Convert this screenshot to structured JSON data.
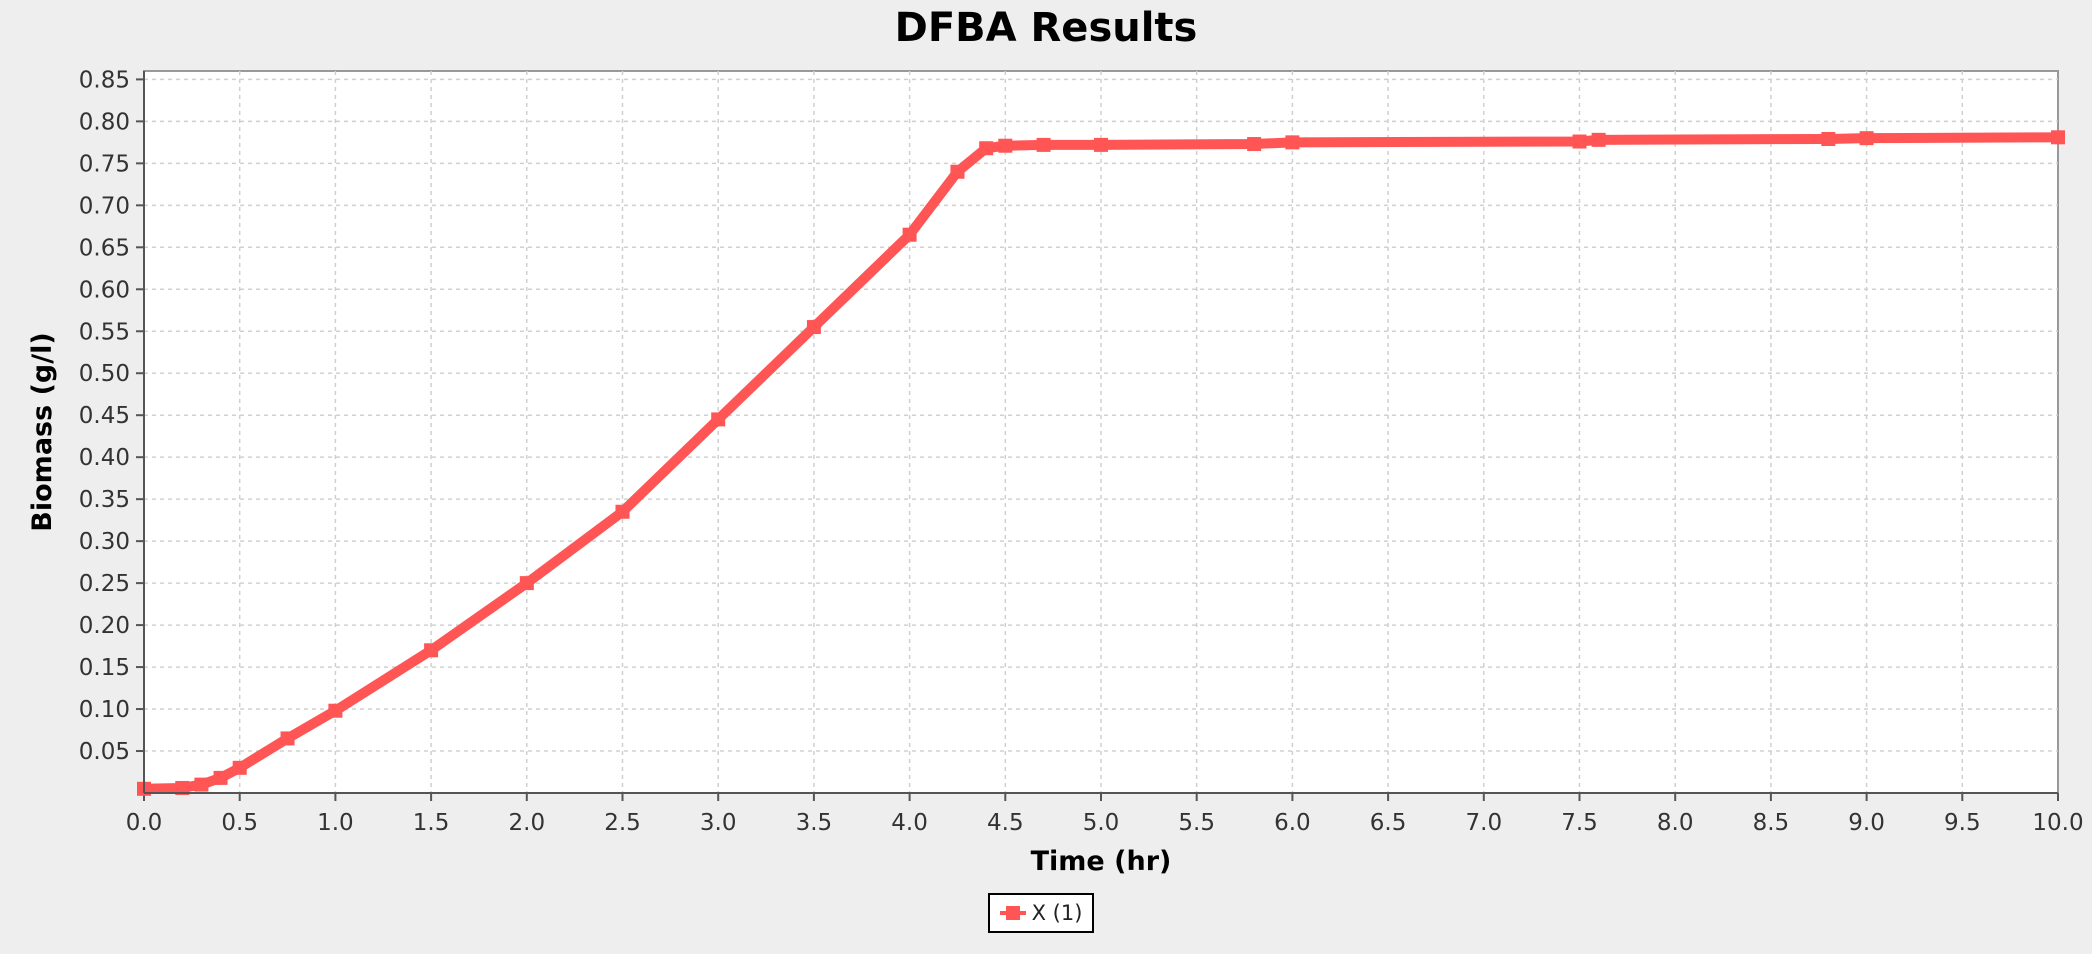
{
  "window": {
    "background": "#eeeeee"
  },
  "chart_data": {
    "type": "line",
    "title": "DFBA Results",
    "xlabel": "Time (hr)",
    "ylabel": "Biomass (g/l)",
    "xlim": [
      0.0,
      10.0
    ],
    "ylim": [
      0.0,
      0.86
    ],
    "x_ticks": [
      "0.0",
      "0.5",
      "1.0",
      "1.5",
      "2.0",
      "2.5",
      "3.0",
      "3.5",
      "4.0",
      "4.5",
      "5.0",
      "5.5",
      "6.0",
      "6.5",
      "7.0",
      "7.5",
      "8.0",
      "8.5",
      "9.0",
      "9.5",
      "10.0"
    ],
    "y_ticks": [
      "0.05",
      "0.10",
      "0.15",
      "0.20",
      "0.25",
      "0.30",
      "0.35",
      "0.40",
      "0.45",
      "0.50",
      "0.55",
      "0.60",
      "0.65",
      "0.70",
      "0.75",
      "0.80",
      "0.85"
    ],
    "grid": true,
    "legend_position": "bottom-center",
    "series": [
      {
        "name": "X (1)",
        "color": "#ff5555",
        "marker": "square",
        "x": [
          0.0,
          0.2,
          0.3,
          0.4,
          0.5,
          0.75,
          1.0,
          1.5,
          2.0,
          2.5,
          3.0,
          3.5,
          4.0,
          4.25,
          4.4,
          4.5,
          4.7,
          5.0,
          5.8,
          6.0,
          7.5,
          7.6,
          8.8,
          9.0,
          10.0
        ],
        "y": [
          0.005,
          0.006,
          0.01,
          0.018,
          0.03,
          0.065,
          0.098,
          0.17,
          0.25,
          0.335,
          0.445,
          0.555,
          0.665,
          0.74,
          0.768,
          0.771,
          0.772,
          0.772,
          0.773,
          0.775,
          0.776,
          0.778,
          0.779,
          0.78,
          0.781
        ]
      }
    ]
  }
}
